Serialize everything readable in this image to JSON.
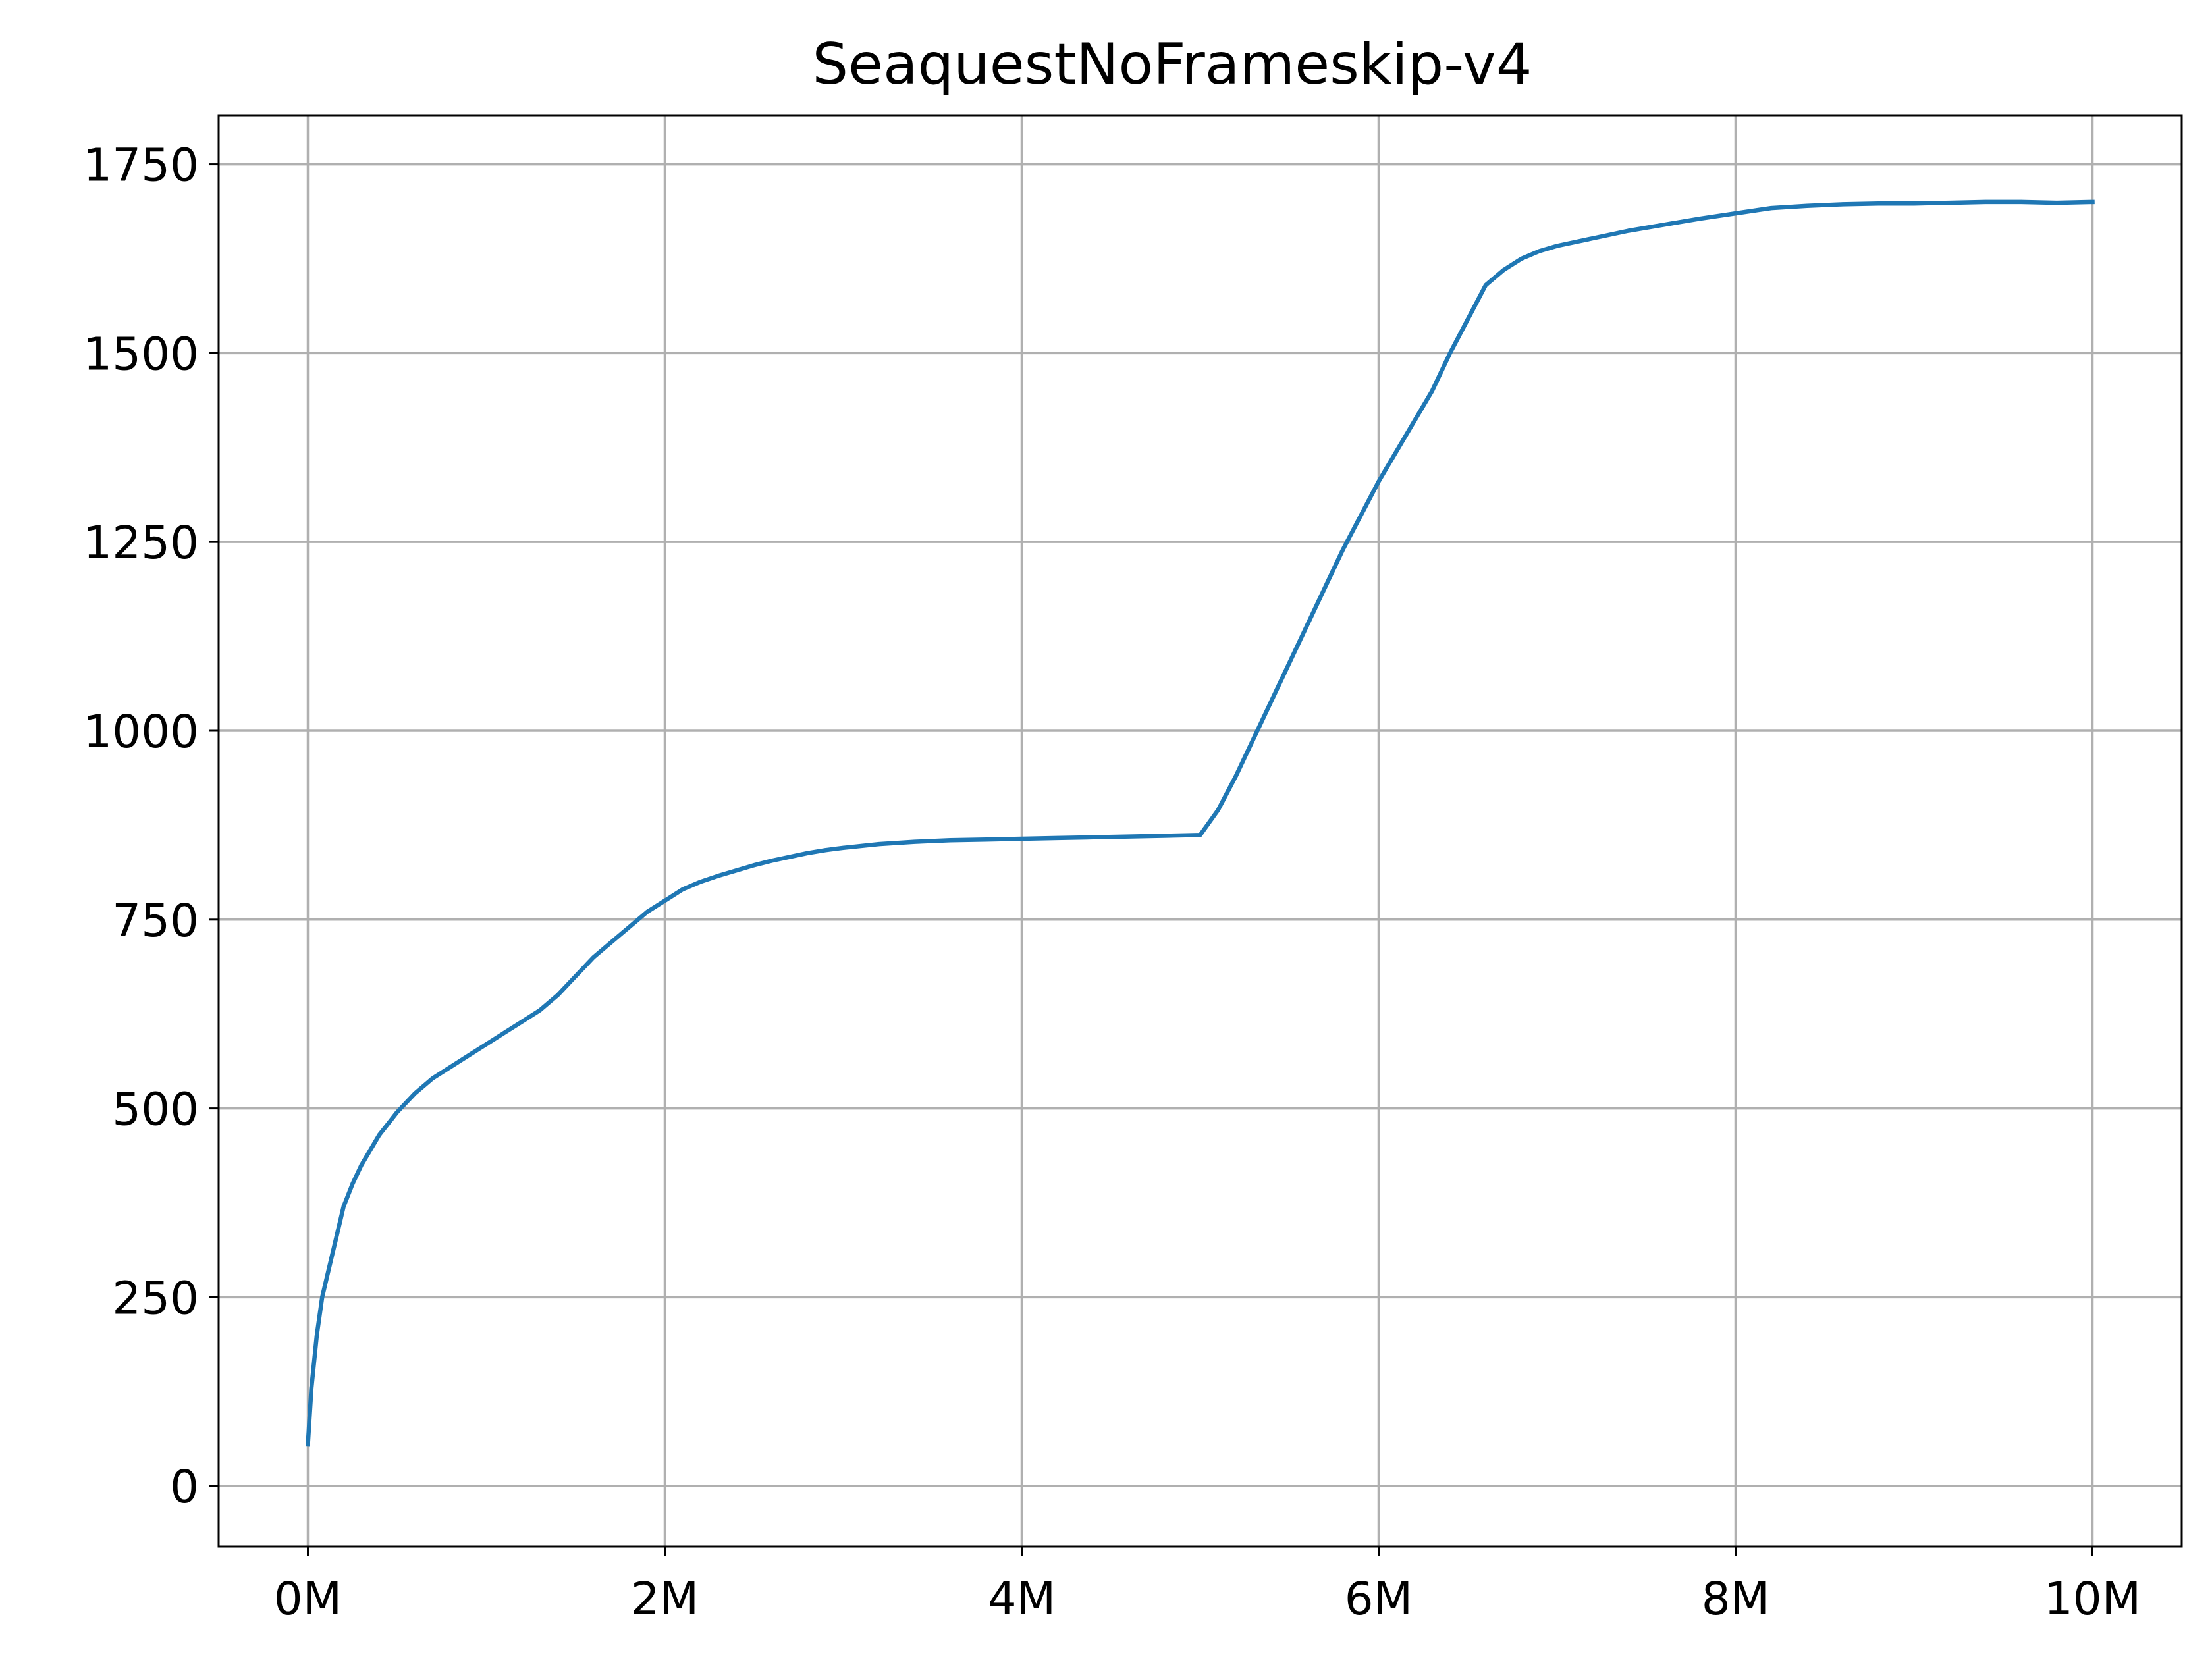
{
  "chart_data": {
    "type": "line",
    "title": "SeaquestNoFrameskip-v4",
    "xlabel": "",
    "ylabel": "",
    "xlim": [
      -0.5,
      10.5
    ],
    "ylim": [
      -80,
      1815
    ],
    "grid": true,
    "x_ticks": [
      {
        "value": 0,
        "label": "0M"
      },
      {
        "value": 2,
        "label": "2M"
      },
      {
        "value": 4,
        "label": "4M"
      },
      {
        "value": 6,
        "label": "6M"
      },
      {
        "value": 8,
        "label": "8M"
      },
      {
        "value": 10,
        "label": "10M"
      }
    ],
    "y_ticks": [
      {
        "value": 0,
        "label": "0"
      },
      {
        "value": 250,
        "label": "250"
      },
      {
        "value": 500,
        "label": "500"
      },
      {
        "value": 750,
        "label": "750"
      },
      {
        "value": 1000,
        "label": "1000"
      },
      {
        "value": 1250,
        "label": "1250"
      },
      {
        "value": 1500,
        "label": "1500"
      },
      {
        "value": 1750,
        "label": "1750"
      }
    ],
    "series": [
      {
        "color": "#1f77b4",
        "x": [
          0.0,
          0.02,
          0.05,
          0.08,
          0.12,
          0.16,
          0.2,
          0.25,
          0.3,
          0.35,
          0.4,
          0.45,
          0.5,
          0.6,
          0.7,
          0.8,
          0.9,
          1.0,
          1.1,
          1.2,
          1.3,
          1.4,
          1.5,
          1.6,
          1.7,
          1.8,
          1.9,
          2.0,
          2.1,
          2.2,
          2.3,
          2.4,
          2.5,
          2.6,
          2.7,
          2.8,
          2.9,
          3.0,
          3.2,
          3.4,
          3.6,
          3.8,
          4.0,
          4.2,
          4.4,
          4.6,
          4.8,
          5.0,
          5.1,
          5.2,
          5.3,
          5.4,
          5.5,
          5.6,
          5.7,
          5.8,
          5.9,
          6.0,
          6.1,
          6.2,
          6.3,
          6.4,
          6.5,
          6.6,
          6.7,
          6.8,
          6.9,
          7.0,
          7.2,
          7.4,
          7.6,
          7.8,
          8.0,
          8.2,
          8.4,
          8.6,
          8.8,
          9.0,
          9.2,
          9.4,
          9.6,
          9.8,
          10.0
        ],
        "y": [
          55,
          130,
          200,
          250,
          290,
          330,
          370,
          400,
          425,
          445,
          465,
          480,
          495,
          520,
          540,
          555,
          570,
          585,
          600,
          615,
          630,
          650,
          675,
          700,
          720,
          740,
          760,
          775,
          790,
          800,
          808,
          815,
          822,
          828,
          833,
          838,
          842,
          845,
          850,
          853,
          855,
          856,
          857,
          858,
          859,
          860,
          861,
          862,
          895,
          940,
          990,
          1040,
          1090,
          1140,
          1190,
          1240,
          1285,
          1330,
          1370,
          1410,
          1450,
          1500,
          1545,
          1590,
          1610,
          1625,
          1635,
          1642,
          1652,
          1662,
          1670,
          1678,
          1685,
          1692,
          1695,
          1697,
          1698,
          1698,
          1699,
          1700,
          1700,
          1699,
          1700
        ]
      }
    ]
  }
}
